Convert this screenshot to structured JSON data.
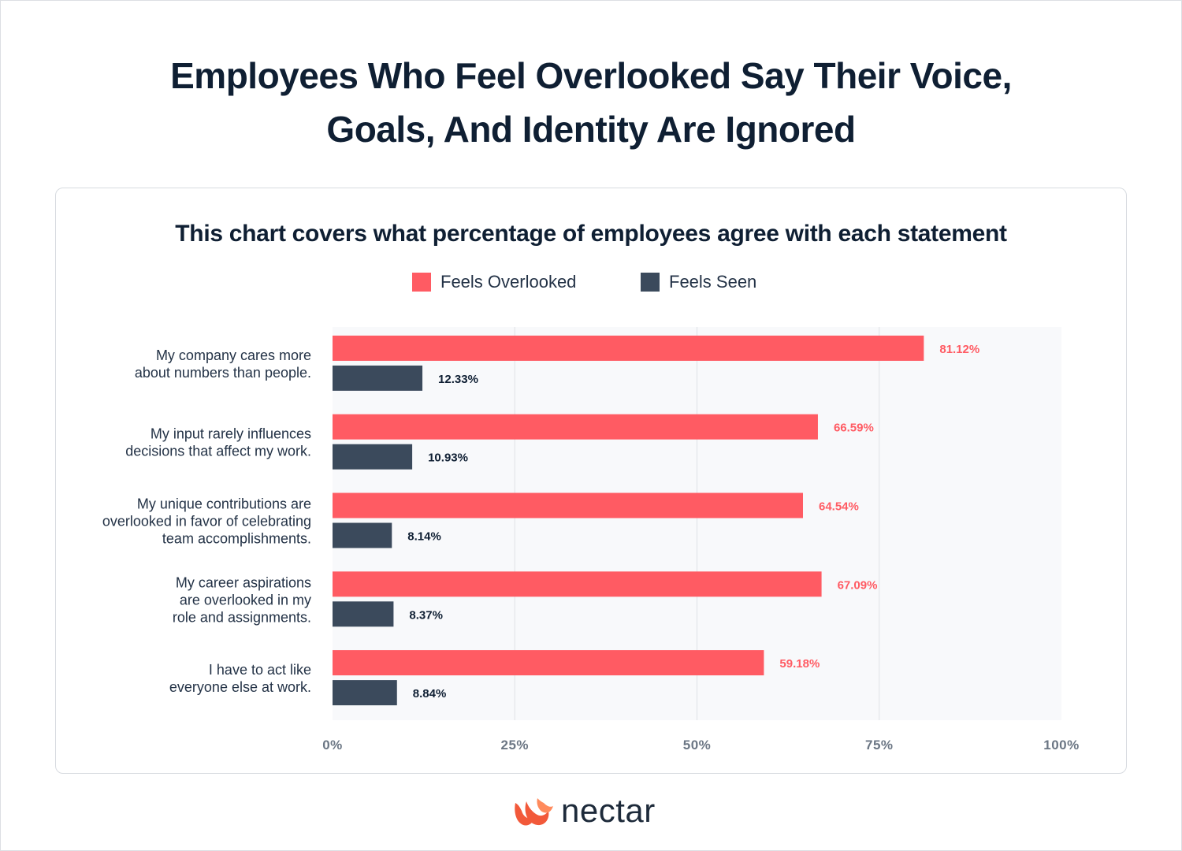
{
  "page": {
    "title_line1": "Employees Who Feel Overlooked Say Their Voice,",
    "title_line2": "Goals, And Identity Are Ignored",
    "brand": "nectar"
  },
  "colors": {
    "overlooked": "#ff5b63",
    "seen": "#3b4a5c",
    "plot_bg": "#f8f9fb",
    "grid": "#dfe2e6",
    "text_dark": "#0f1f33",
    "tick": "#6b7684"
  },
  "chart_data": {
    "type": "bar",
    "orientation": "horizontal",
    "title": "This chart covers what percentage of employees agree with each statement",
    "categories": [
      [
        "My company cares more",
        "about numbers than people."
      ],
      [
        "My input rarely influences",
        "decisions that affect my work."
      ],
      [
        "My unique contributions are",
        "overlooked in favor of celebrating",
        "team accomplishments."
      ],
      [
        "My career aspirations",
        "are overlooked in my",
        "role and assignments."
      ],
      [
        "I have to act like",
        "everyone else at work."
      ]
    ],
    "series": [
      {
        "name": "Feels Overlooked",
        "values": [
          81.12,
          66.59,
          64.54,
          67.09,
          59.18
        ],
        "labels": [
          "81.12%",
          "66.59%",
          "64.54%",
          "67.09%",
          "59.18%"
        ]
      },
      {
        "name": "Feels Seen",
        "values": [
          12.33,
          10.93,
          8.14,
          8.37,
          8.84
        ],
        "labels": [
          "12.33%",
          "10.93%",
          "8.14%",
          "8.37%",
          "8.84%"
        ]
      }
    ],
    "xlim": [
      0,
      100
    ],
    "xticks": [
      "0%",
      "25%",
      "50%",
      "75%",
      "100%"
    ],
    "xtick_values": [
      0,
      25,
      50,
      75,
      100
    ],
    "grid": true,
    "legend_position": "top-center"
  }
}
